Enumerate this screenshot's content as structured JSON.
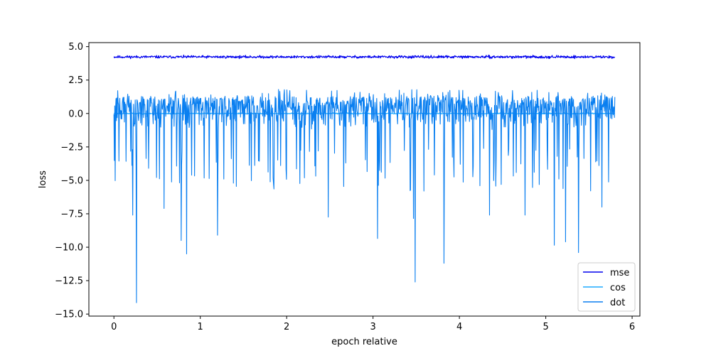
{
  "chart_data": {
    "type": "line",
    "title": "",
    "xlabel": "epoch relative",
    "ylabel": "loss",
    "xlim": [
      -0.29,
      6.09
    ],
    "ylim": [
      -15.15,
      5.3
    ],
    "xticks": [
      0,
      1,
      2,
      3,
      4,
      5,
      6
    ],
    "xtick_labels": [
      "0",
      "1",
      "2",
      "3",
      "4",
      "5",
      "6"
    ],
    "yticks": [
      5.0,
      2.5,
      0.0,
      -2.5,
      -5.0,
      -7.5,
      -10.0,
      -12.5,
      -15.0
    ],
    "ytick_labels": [
      "5.0",
      "2.5",
      "0.0",
      "−2.5",
      "−5.0",
      "−7.5",
      "−10.0",
      "−12.5",
      "−15.0"
    ],
    "grid": false,
    "legend_position": "lower-right",
    "x_range": [
      0,
      5.8
    ],
    "n_points": 1200,
    "series": [
      {
        "name": "mse",
        "color": "#0000ee",
        "style": "noise",
        "mean": 4.23,
        "noise_amplitude": 0.07,
        "seed": 11
      },
      {
        "name": "cos",
        "color": "#1eaaff",
        "style": "noise",
        "mean": 0.0,
        "noise_amplitude": 0.03,
        "seed": 23
      },
      {
        "name": "dot",
        "color": "#0a7ff0",
        "style": "spiky-noise",
        "mean": -0.2,
        "band_low": -2.6,
        "band_high": 1.3,
        "spike_probability": 0.09,
        "seed": 37,
        "spikes": [
          {
            "x": 0.22,
            "y": -7.6
          },
          {
            "x": 0.26,
            "y": -14.15
          },
          {
            "x": 0.58,
            "y": -7.1
          },
          {
            "x": 0.78,
            "y": -9.5
          },
          {
            "x": 0.84,
            "y": -10.5
          },
          {
            "x": 1.2,
            "y": -9.1
          },
          {
            "x": 2.48,
            "y": -7.75
          },
          {
            "x": 3.05,
            "y": -9.35
          },
          {
            "x": 3.47,
            "y": -7.85
          },
          {
            "x": 3.49,
            "y": -12.6
          },
          {
            "x": 3.82,
            "y": -11.2
          },
          {
            "x": 4.35,
            "y": -7.6
          },
          {
            "x": 4.76,
            "y": -7.6
          },
          {
            "x": 5.1,
            "y": -9.85
          },
          {
            "x": 5.23,
            "y": -9.6
          },
          {
            "x": 5.38,
            "y": -10.4
          },
          {
            "x": 5.65,
            "y": -7.0
          }
        ]
      }
    ]
  }
}
